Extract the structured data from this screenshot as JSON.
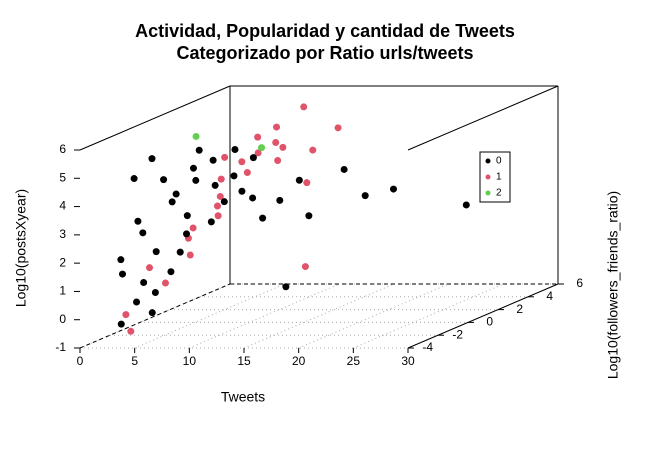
{
  "chart_data": {
    "type": "scatter3d",
    "title": "Actividad, Popularidad y cantidad de Tweets",
    "subtitle": "Categorizado por Ratio urls/tweets",
    "xlabel": "Tweets",
    "ylabel": "Log10(followers_friends_ratio)",
    "zlabel": "Log10(postsXyear)",
    "xlim": [
      0,
      30
    ],
    "ylim": [
      -4,
      6
    ],
    "zlim": [
      -1,
      6
    ],
    "xticks": [
      0,
      5,
      10,
      15,
      20,
      25,
      30
    ],
    "yticks": [
      -4,
      -2,
      0,
      2,
      4,
      6
    ],
    "zticks": [
      -1,
      0,
      1,
      2,
      3,
      4,
      5,
      6
    ],
    "legend": "right",
    "series": [
      {
        "name": "0",
        "color": "#000000",
        "x": [
          3.2,
          4.1,
          5.0,
          3.8,
          6.2,
          4.5,
          5.7,
          7.1,
          3.5,
          4.9,
          6.6,
          5.3,
          8.0,
          4.2,
          5.9,
          7.5,
          3.9,
          6.1,
          4.7,
          5.5,
          9.0,
          6.8,
          4.4,
          5.1,
          7.3,
          3.6,
          6.4,
          8.5,
          4.8,
          5.6,
          12.1,
          13.8,
          15.4,
          16.2,
          22.5,
          27.1,
          13.2,
          11.9,
          10.3,
          19.5
        ],
        "y": [
          -3.5,
          -2.8,
          -1.5,
          -3.0,
          -0.8,
          -2.2,
          -1.0,
          -0.3,
          -3.8,
          -2.0,
          0.2,
          -1.8,
          0.5,
          -3.2,
          -1.2,
          0.8,
          -2.6,
          -0.5,
          -2.4,
          -1.6,
          1.0,
          -0.2,
          -3.6,
          -2.9,
          0.3,
          -3.9,
          -1.1,
          0.6,
          -2.7,
          -1.4,
          0.5,
          1.2,
          -1.5,
          1.8,
          0.5,
          2.0,
          1.0,
          -0.5,
          0.0,
          0.8
        ],
        "z": [
          1.5,
          2.8,
          3.6,
          0.4,
          4.2,
          2.0,
          3.0,
          4.8,
          -0.2,
          4.5,
          3.8,
          1.2,
          5.0,
          3.3,
          2.4,
          4.0,
          1.0,
          5.2,
          0.6,
          3.9,
          4.6,
          2.6,
          4.9,
          0.0,
          3.2,
          2.1,
          4.7,
          3.5,
          5.4,
          1.8,
          3.2,
          2.5,
          0.6,
          4.0,
          3.6,
          2.7,
          3.8,
          2.8,
          3.4,
          3.3
        ]
      },
      {
        "name": "1",
        "color": "#DF536B",
        "x": [
          2.8,
          4.0,
          5.2,
          3.5,
          6.0,
          4.6,
          7.2,
          5.5,
          3.9,
          6.8,
          8.2,
          4.3,
          5.8,
          9.5,
          7.0,
          3.1,
          4.8,
          6.4,
          11.0,
          14.0,
          16.5,
          13.2,
          8.8,
          5.0,
          4.1
        ],
        "y": [
          1.5,
          2.5,
          3.0,
          0.8,
          3.5,
          2.0,
          3.8,
          1.2,
          2.8,
          2.2,
          3.2,
          -2.5,
          -1.0,
          2.6,
          4.0,
          -3.2,
          -1.8,
          0.5,
          3.5,
          3.0,
          -1.0,
          1.5,
          4.5,
          4.2,
          -3.6
        ],
        "z": [
          2.0,
          3.5,
          4.0,
          1.2,
          4.2,
          3.0,
          4.5,
          2.5,
          4.2,
          3.8,
          4.0,
          1.5,
          2.2,
          4.6,
          5.0,
          0.0,
          0.8,
          3.0,
          4.3,
          5.2,
          1.2,
          3.6,
          5.6,
          4.6,
          -0.5
        ]
      },
      {
        "name": "2",
        "color": "#61D04F",
        "x": [
          6.5,
          7.0
        ],
        "y": [
          -1.0,
          3.0
        ],
        "z": [
          5.8,
          4.5
        ]
      }
    ]
  }
}
